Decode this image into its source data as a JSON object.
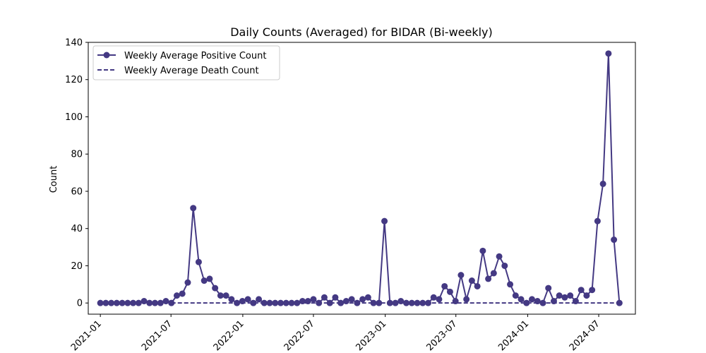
{
  "chart_data": {
    "type": "line",
    "title": "Daily Counts (Averaged) for BIDAR (Bi-weekly)",
    "xlabel": "",
    "ylabel": "Count",
    "ylim": [
      -6,
      140
    ],
    "xlim": [
      "2020-12-01",
      "2024-10-03"
    ],
    "yticks": [
      0,
      20,
      40,
      60,
      80,
      100,
      120,
      140
    ],
    "xticks": [
      "2021-01",
      "2021-07",
      "2022-01",
      "2022-07",
      "2023-01",
      "2023-07",
      "2024-01",
      "2024-07"
    ],
    "grid": false,
    "legend_position": "top-left",
    "series_color": "#443983",
    "series": [
      {
        "name": "Weekly Average Positive Count",
        "style": "solid-marker",
        "points": [
          [
            "2021-01-01",
            0
          ],
          [
            "2021-01-15",
            0
          ],
          [
            "2021-01-29",
            0
          ],
          [
            "2021-02-12",
            0
          ],
          [
            "2021-02-26",
            0
          ],
          [
            "2021-03-12",
            0
          ],
          [
            "2021-03-26",
            0
          ],
          [
            "2021-04-09",
            0
          ],
          [
            "2021-04-23",
            1
          ],
          [
            "2021-05-07",
            0
          ],
          [
            "2021-05-21",
            0
          ],
          [
            "2021-06-04",
            0
          ],
          [
            "2021-06-18",
            1
          ],
          [
            "2021-07-02",
            0
          ],
          [
            "2021-07-16",
            4
          ],
          [
            "2021-07-30",
            5
          ],
          [
            "2021-08-13",
            11
          ],
          [
            "2021-08-27",
            51
          ],
          [
            "2021-09-10",
            22
          ],
          [
            "2021-09-24",
            12
          ],
          [
            "2021-10-08",
            13
          ],
          [
            "2021-10-22",
            8
          ],
          [
            "2021-11-05",
            4
          ],
          [
            "2021-11-19",
            4
          ],
          [
            "2021-12-03",
            2
          ],
          [
            "2021-12-17",
            0
          ],
          [
            "2021-12-31",
            1
          ],
          [
            "2022-01-14",
            2
          ],
          [
            "2022-01-28",
            0
          ],
          [
            "2022-02-11",
            2
          ],
          [
            "2022-02-25",
            0
          ],
          [
            "2022-03-11",
            0
          ],
          [
            "2022-03-25",
            0
          ],
          [
            "2022-04-08",
            0
          ],
          [
            "2022-04-22",
            0
          ],
          [
            "2022-05-06",
            0
          ],
          [
            "2022-05-20",
            0
          ],
          [
            "2022-06-03",
            1
          ],
          [
            "2022-06-17",
            1
          ],
          [
            "2022-07-01",
            2
          ],
          [
            "2022-07-15",
            0
          ],
          [
            "2022-07-29",
            3
          ],
          [
            "2022-08-12",
            0
          ],
          [
            "2022-08-26",
            3
          ],
          [
            "2022-09-09",
            0
          ],
          [
            "2022-09-23",
            1
          ],
          [
            "2022-10-07",
            2
          ],
          [
            "2022-10-21",
            0
          ],
          [
            "2022-11-04",
            2
          ],
          [
            "2022-11-18",
            3
          ],
          [
            "2022-12-02",
            0
          ],
          [
            "2022-12-16",
            0
          ],
          [
            "2022-12-30",
            44
          ],
          [
            "2023-01-13",
            0
          ],
          [
            "2023-01-27",
            0
          ],
          [
            "2023-02-10",
            1
          ],
          [
            "2023-02-24",
            0
          ],
          [
            "2023-03-10",
            0
          ],
          [
            "2023-03-24",
            0
          ],
          [
            "2023-04-07",
            0
          ],
          [
            "2023-04-21",
            0
          ],
          [
            "2023-05-05",
            3
          ],
          [
            "2023-05-19",
            2
          ],
          [
            "2023-06-02",
            9
          ],
          [
            "2023-06-16",
            6
          ],
          [
            "2023-06-30",
            1
          ],
          [
            "2023-07-14",
            15
          ],
          [
            "2023-07-28",
            2
          ],
          [
            "2023-08-11",
            12
          ],
          [
            "2023-08-25",
            9
          ],
          [
            "2023-09-08",
            28
          ],
          [
            "2023-09-22",
            13
          ],
          [
            "2023-10-06",
            16
          ],
          [
            "2023-10-20",
            25
          ],
          [
            "2023-11-03",
            20
          ],
          [
            "2023-11-17",
            10
          ],
          [
            "2023-12-01",
            4
          ],
          [
            "2023-12-15",
            2
          ],
          [
            "2023-12-29",
            0
          ],
          [
            "2024-01-12",
            2
          ],
          [
            "2024-01-26",
            1
          ],
          [
            "2024-02-09",
            0
          ],
          [
            "2024-02-23",
            8
          ],
          [
            "2024-03-08",
            1
          ],
          [
            "2024-03-22",
            4
          ],
          [
            "2024-04-05",
            3
          ],
          [
            "2024-04-19",
            4
          ],
          [
            "2024-05-03",
            1
          ],
          [
            "2024-05-17",
            7
          ],
          [
            "2024-05-31",
            4
          ],
          [
            "2024-06-14",
            7
          ],
          [
            "2024-06-28",
            44
          ],
          [
            "2024-07-12",
            64
          ],
          [
            "2024-07-26",
            134
          ],
          [
            "2024-08-09",
            34
          ],
          [
            "2024-08-23",
            0
          ]
        ]
      },
      {
        "name": "Weekly Average Death Count",
        "style": "dashed",
        "points": [
          [
            "2021-07-02",
            0
          ],
          [
            "2024-08-23",
            0
          ]
        ]
      }
    ]
  }
}
